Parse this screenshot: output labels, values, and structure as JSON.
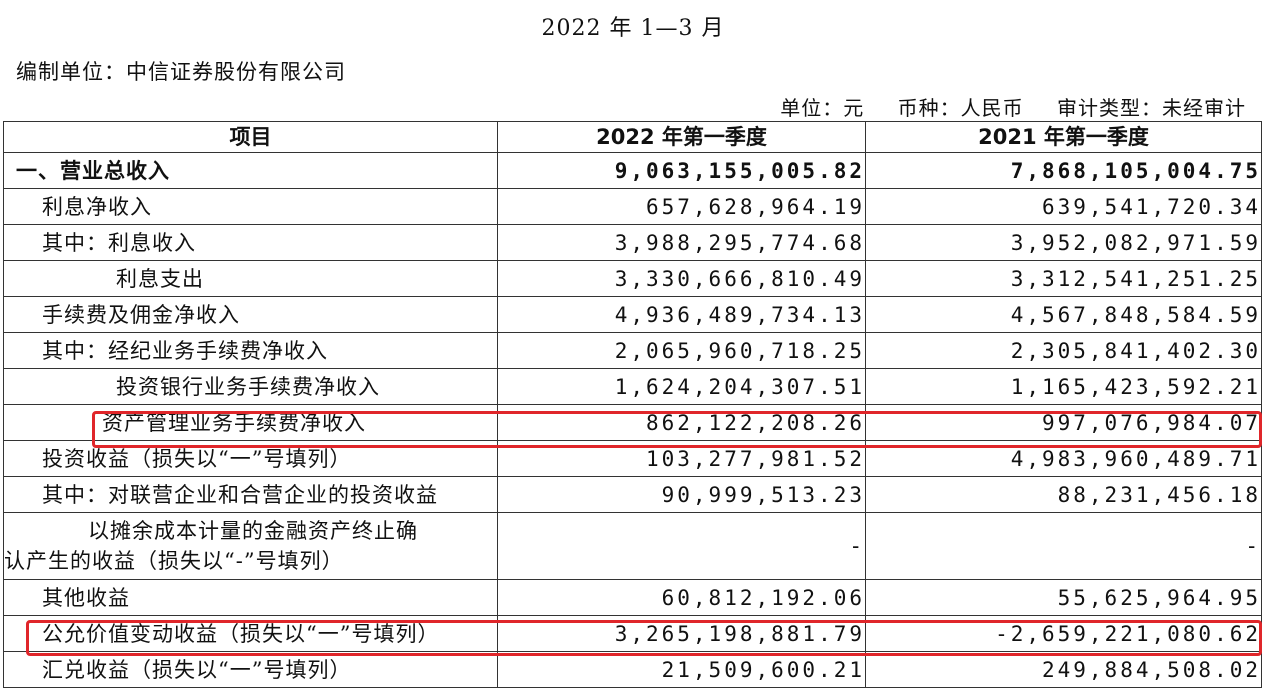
{
  "header": {
    "title": "2022 年 1—3 月",
    "company": "编制单位：中信证券股份有限公司",
    "unit": "单位：元",
    "currency": "币种：人民币",
    "audit": "审计类型：未经审计"
  },
  "table": {
    "columns": [
      "项目",
      "2022 年第一季度",
      "2021 年第一季度"
    ],
    "rows": [
      {
        "item": "一、营业总收入",
        "v2022": "9,063,155,005.82",
        "v2021": "7,868,105,004.75"
      },
      {
        "item": "利息净收入",
        "v2022": "657,628,964.19",
        "v2021": "639,541,720.34"
      },
      {
        "item": "其中：利息收入",
        "v2022": "3,988,295,774.68",
        "v2021": "3,952,082,971.59"
      },
      {
        "item": "利息支出",
        "v2022": "3,330,666,810.49",
        "v2021": "3,312,541,251.25"
      },
      {
        "item": "手续费及佣金净收入",
        "v2022": "4,936,489,734.13",
        "v2021": "4,567,848,584.59"
      },
      {
        "item": "其中：经纪业务手续费净收入",
        "v2022": "2,065,960,718.25",
        "v2021": "2,305,841,402.30"
      },
      {
        "item": "投资银行业务手续费净收入",
        "v2022": "1,624,204,307.51",
        "v2021": "1,165,423,592.21"
      },
      {
        "item": "资产管理业务手续费净收入",
        "v2022": "862,122,208.26",
        "v2021": "997,076,984.07"
      },
      {
        "item": "投资收益（损失以“一”号填列）",
        "v2022": "103,277,981.52",
        "v2021": "4,983,960,489.71"
      },
      {
        "item": "其中：对联营企业和合营企业的投资收益",
        "v2022": "90,999,513.23",
        "v2021": "88,231,456.18"
      },
      {
        "item_line1": "以摊余成本计量的金融资产终止确",
        "item_line2": "认产生的收益（损失以“-”号填列）",
        "v2022": "-",
        "v2021": "-"
      },
      {
        "item": "其他收益",
        "v2022": "60,812,192.06",
        "v2021": "55,625,964.95"
      },
      {
        "item": "公允价值变动收益（损失以“一”号填列）",
        "v2022": "3,265,198,881.79",
        "v2021": "-2,659,221,080.62"
      },
      {
        "item": "汇兑收益（损失以“一”号填列）",
        "v2022": "21,509,600.21",
        "v2021": "249,884,508.02"
      }
    ]
  },
  "highlight_color": "#e0262a"
}
